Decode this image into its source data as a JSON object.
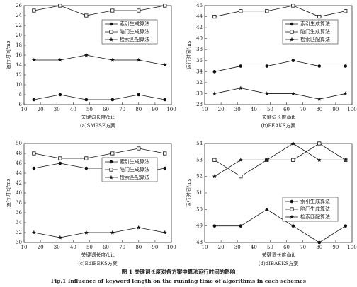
{
  "chart_data": [
    {
      "type": "line",
      "subtitle": "(a)SM9SE方案",
      "xlabel": "关键词长度/bit",
      "ylabel": "运行时间/ms",
      "x": [
        16,
        32,
        48,
        64,
        80,
        96
      ],
      "xlim": [
        10,
        100
      ],
      "xticks": [
        10,
        20,
        30,
        40,
        50,
        60,
        70,
        80,
        90,
        100
      ],
      "ylim": [
        6,
        26
      ],
      "yticks": [
        6,
        8,
        10,
        12,
        14,
        16,
        18,
        20,
        22,
        24,
        26
      ],
      "legend": "upper right",
      "series": [
        {
          "name": "索引生成算法",
          "color": "#111111",
          "marker": "circle",
          "values": [
            7,
            8,
            7,
            7,
            8,
            7
          ]
        },
        {
          "name": "陷门生成算法",
          "color": "#111111",
          "marker": "square",
          "values": [
            25,
            26,
            24,
            25,
            25,
            26
          ]
        },
        {
          "name": "检索匹配算法",
          "color": "#111111",
          "marker": "star",
          "values": [
            15,
            15,
            16,
            15,
            15,
            14
          ]
        }
      ]
    },
    {
      "type": "line",
      "subtitle": "(b)PEAKS方案",
      "xlabel": "关键词长度/bit",
      "ylabel": "运行时间/ms",
      "x": [
        16,
        32,
        48,
        64,
        80,
        96
      ],
      "xlim": [
        10,
        100
      ],
      "xticks": [
        10,
        20,
        30,
        40,
        50,
        60,
        70,
        80,
        90,
        100
      ],
      "ylim": [
        28,
        46
      ],
      "yticks": [
        28,
        30,
        32,
        34,
        36,
        38,
        40,
        42,
        44,
        46
      ],
      "legend": "upper right",
      "series": [
        {
          "name": "索引生成算法",
          "color": "#111111",
          "marker": "circle",
          "values": [
            34,
            35,
            35,
            36,
            35,
            35
          ]
        },
        {
          "name": "陷门生成算法",
          "color": "#111111",
          "marker": "square",
          "values": [
            44,
            45,
            45,
            46,
            44,
            45
          ]
        },
        {
          "name": "检索匹配算法",
          "color": "#111111",
          "marker": "star",
          "values": [
            30,
            31,
            30,
            30,
            29,
            30
          ]
        }
      ]
    },
    {
      "type": "line",
      "subtitle": "(c)EdlBEKS方案",
      "xlabel": "关键词长度/bit",
      "ylabel": "运行时间/ms",
      "x": [
        16,
        32,
        48,
        64,
        80,
        96
      ],
      "xlim": [
        10,
        100
      ],
      "xticks": [
        10,
        20,
        30,
        40,
        50,
        60,
        70,
        80,
        90,
        100
      ],
      "ylim": [
        30,
        50
      ],
      "yticks": [
        30,
        32,
        34,
        36,
        38,
        40,
        42,
        44,
        46,
        48,
        50
      ],
      "legend": "upper right",
      "series": [
        {
          "name": "索引生成算法",
          "color": "#111111",
          "marker": "circle",
          "values": [
            45,
            46,
            45,
            45,
            44,
            45
          ]
        },
        {
          "name": "陷门生成算法",
          "color": "#111111",
          "marker": "square",
          "values": [
            48,
            47,
            47,
            48,
            49,
            48
          ]
        },
        {
          "name": "检索匹配算法",
          "color": "#111111",
          "marker": "star",
          "values": [
            32,
            31,
            32,
            32,
            33,
            32
          ]
        }
      ]
    },
    {
      "type": "line",
      "subtitle": "(d)dIBAEKS方案",
      "xlabel": "关键词长度/bit",
      "ylabel": "运行时间/ms",
      "x": [
        16,
        32,
        48,
        64,
        80,
        96
      ],
      "xlim": [
        10,
        100
      ],
      "xticks": [
        10,
        20,
        30,
        40,
        50,
        60,
        70,
        80,
        90,
        100
      ],
      "ylim": [
        48,
        54
      ],
      "yticks": [
        48,
        49,
        50,
        51,
        52,
        53,
        54
      ],
      "legend": "lower right",
      "series": [
        {
          "name": "索引生成算法",
          "color": "#111111",
          "marker": "circle",
          "values": [
            49,
            49,
            50,
            49,
            48,
            49
          ]
        },
        {
          "name": "陷门生成算法",
          "color": "#111111",
          "marker": "square",
          "values": [
            53,
            52,
            53,
            53,
            54,
            53
          ]
        },
        {
          "name": "检索匹配算法",
          "color": "#111111",
          "marker": "star",
          "values": [
            52,
            53,
            53,
            54,
            53,
            53
          ]
        }
      ]
    }
  ],
  "caption": {
    "cn": "图 1   关键词长度对各方案中算法运行时间的影响",
    "en": "Fig.1    Influence of keyword length on the running time of algorithms in each schemes"
  }
}
